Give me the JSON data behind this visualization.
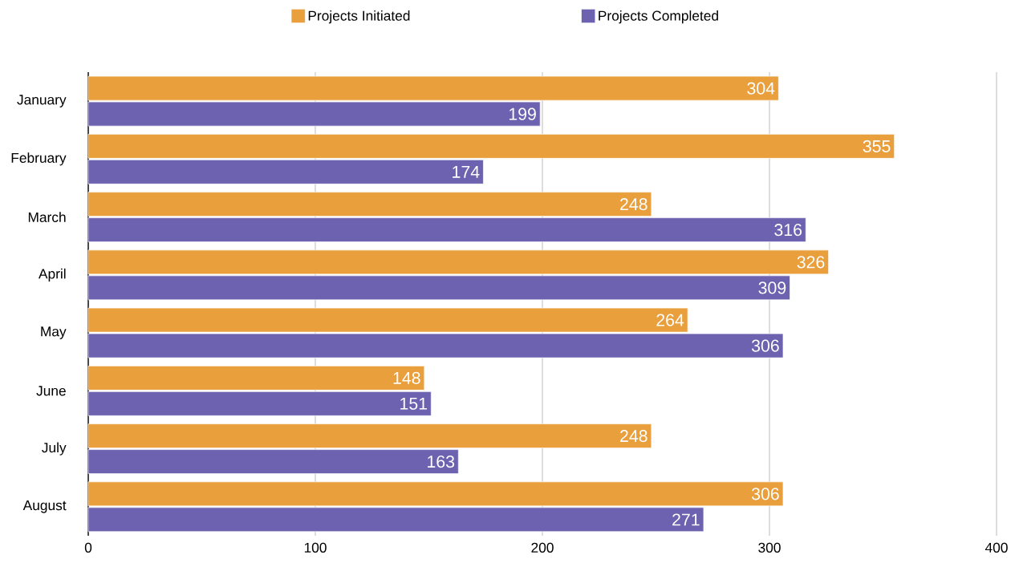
{
  "chart_data": {
    "type": "bar",
    "orientation": "horizontal",
    "categories": [
      "January",
      "February",
      "March",
      "April",
      "May",
      "June",
      "July",
      "August"
    ],
    "series": [
      {
        "name": "Projects Initiated",
        "color": "#e89f3c",
        "values": [
          304,
          355,
          248,
          326,
          264,
          148,
          248,
          306
        ]
      },
      {
        "name": "Projects Completed",
        "color": "#6c62b0",
        "values": [
          199,
          174,
          316,
          309,
          306,
          151,
          163,
          271
        ]
      }
    ],
    "xlim": [
      0,
      400
    ],
    "xticks": [
      0,
      100,
      200,
      300,
      400
    ],
    "grid": "x",
    "legend": "top",
    "data_labels": true
  }
}
